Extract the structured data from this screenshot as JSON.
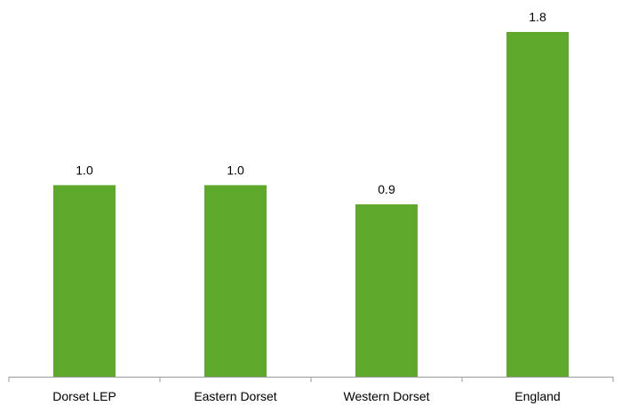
{
  "chart_data": {
    "type": "bar",
    "categories": [
      "Dorset LEP",
      "Eastern Dorset",
      "Western Dorset",
      "England"
    ],
    "values": [
      1.0,
      1.0,
      0.9,
      1.8
    ],
    "data_labels": [
      "1.0",
      "1.0",
      "0.9",
      "1.8"
    ],
    "title": "",
    "xlabel": "",
    "ylabel": "",
    "ylim": [
      0,
      1.8
    ],
    "grid": false,
    "legend": "none",
    "bar_color": "#5ea82b"
  }
}
